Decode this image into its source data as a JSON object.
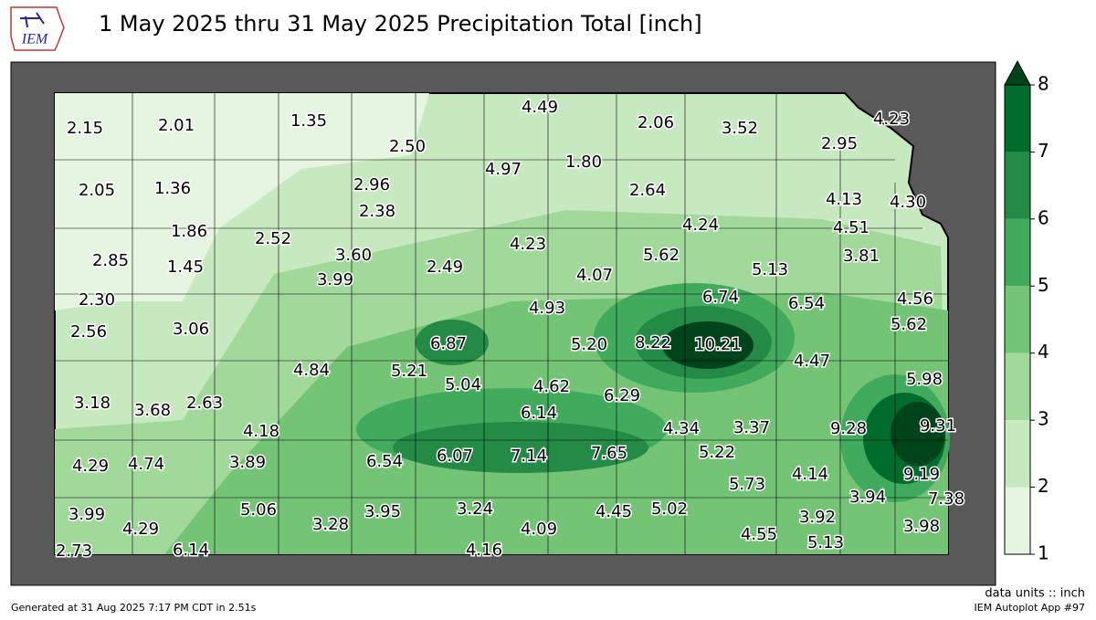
{
  "header": {
    "title": "1 May 2025 thru 31 May 2025 Precipitation Total [inch]",
    "logo": "IEM"
  },
  "stations": {
    "values": [
      2.15,
      2.01,
      1.35,
      4.49,
      2.06,
      3.52,
      4.23,
      2.5,
      2.95,
      4.97,
      1.8,
      2.05,
      1.36,
      2.96,
      2.64,
      4.13,
      4.3,
      2.38,
      4.24,
      4.51,
      1.86,
      2.52,
      4.23,
      2.85,
      3.6,
      5.62,
      3.81,
      1.45,
      2.49,
      4.07,
      5.13,
      3.99,
      2.3,
      6.74,
      6.54,
      4.56,
      4.93,
      2.56,
      3.06,
      6.87,
      5.2,
      8.22,
      10.21,
      5.62,
      4.47,
      4.84,
      5.21,
      5.04,
      4.62,
      5.98,
      6.29,
      3.18,
      3.68,
      2.63,
      6.14,
      4.34,
      3.37,
      9.28,
      9.31,
      4.18,
      6.54,
      6.07,
      7.14,
      7.65,
      5.22,
      3.89,
      4.29,
      4.74,
      4.14,
      9.19,
      5.73,
      3.94,
      7.38,
      5.06,
      3.24,
      4.45,
      5.02,
      3.99,
      3.95,
      3.28,
      4.29,
      4.09,
      3.92,
      3.98,
      4.55,
      5.13,
      2.73,
      6.14,
      4.16
    ],
    "value_labels": [
      "2.15",
      "2.01",
      "1.35",
      "4.49",
      "2.06",
      "3.52",
      "4.23",
      "2.50",
      "2.95",
      "4.97",
      "1.80",
      "2.05",
      "1.36",
      "2.96",
      "2.64",
      "4.13",
      "4.30",
      "2.38",
      "4.24",
      "4.51",
      "1.86",
      "2.52",
      "4.23",
      "2.85",
      "3.60",
      "5.62",
      "3.81",
      "1.45",
      "2.49",
      "4.07",
      "5.13",
      "3.99",
      "2.30",
      "6.74",
      "6.54",
      "4.56",
      "4.93",
      "2.56",
      "3.06",
      "6.87",
      "5.20",
      "8.22",
      "10.21",
      "5.62",
      "4.47",
      "4.84",
      "5.21",
      "5.04",
      "4.62",
      "5.98",
      "6.29",
      "3.18",
      "3.68",
      "2.63",
      "6.14",
      "4.34",
      "3.37",
      "9.28",
      "9.31",
      "4.18",
      "6.54",
      "6.07",
      "7.14",
      "7.65",
      "5.22",
      "3.89",
      "4.29",
      "4.74",
      "4.14",
      "9.19",
      "5.73",
      "3.94",
      "7.38",
      "5.06",
      "3.24",
      "4.45",
      "5.02",
      "3.99",
      "3.95",
      "3.28",
      "4.29",
      "4.09",
      "3.92",
      "3.98",
      "4.55",
      "5.13",
      "2.73",
      "6.14",
      "4.16"
    ]
  },
  "colorbar": {
    "ticks": [
      1,
      2,
      3,
      4,
      5,
      6,
      7,
      8
    ],
    "colors": [
      "#e5f5e0",
      "#c7e9c0",
      "#a1d99b",
      "#74c476",
      "#41ab5d",
      "#238b45",
      "#006d2c",
      "#00441b"
    ]
  },
  "footer": {
    "units": "data units :: inch",
    "generated": "Generated at 31 Aug 2025 7:17 PM CDT in 2.51s",
    "app": "IEM Autoplot App #97"
  }
}
